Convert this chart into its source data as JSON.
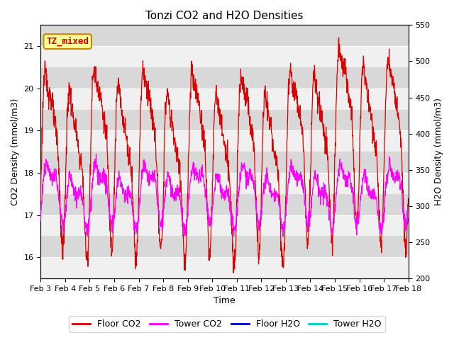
{
  "title": "Tonzi CO2 and H2O Densities",
  "xlabel": "Time",
  "ylabel_left": "CO2 Density (mmol/m3)",
  "ylabel_right": "H2O Density (mmol/m3)",
  "ylim_left": [
    15.5,
    21.5
  ],
  "ylim_right": [
    200,
    550
  ],
  "xtick_labels": [
    "Feb 3",
    "Feb 4",
    "Feb 5",
    "Feb 6",
    "Feb 7",
    "Feb 8",
    "Feb 9",
    "Feb 10",
    "Feb 11",
    "Feb 12",
    "Feb 13",
    "Feb 14",
    "Feb 15",
    "Feb 16",
    "Feb 17",
    "Feb 18"
  ],
  "annotation_text": "TZ_mixed",
  "annotation_color": "#cc0000",
  "annotation_bg": "#ffff99",
  "annotation_edge": "#cc8800",
  "floor_co2_color": "#dd0000",
  "tower_co2_color": "#ff00ff",
  "floor_h2o_color": "#0000cc",
  "tower_h2o_color": "#00cccc",
  "legend_labels": [
    "Floor CO2",
    "Tower CO2",
    "Floor H2O",
    "Tower H2O"
  ],
  "bg_band_light": "#f0f0f0",
  "bg_band_dark": "#d8d8d8",
  "n_days": 15,
  "pts_per_day": 96
}
